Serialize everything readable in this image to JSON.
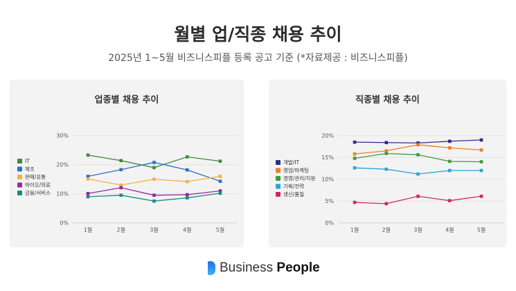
{
  "header": {
    "title": "월별 업/직종 채용 추이",
    "subtitle": "2025년 1~5월 비즈니스피플 등록 공고 기준 (*자료제공 : 비즈니스피플)"
  },
  "footer": {
    "brand_light": "Business",
    "brand_bold": "People"
  },
  "chart_data": [
    {
      "type": "line",
      "title": "업종별 채용 추이",
      "categories": [
        "1월",
        "2월",
        "3월",
        "4월",
        "5월"
      ],
      "ylim": [
        0,
        30
      ],
      "yticks": [
        0,
        10,
        20,
        30
      ],
      "ytick_labels": [
        "0%",
        "10%",
        "20%",
        "30%"
      ],
      "grid": true,
      "legend": "left",
      "series": [
        {
          "name": "IT",
          "color": "#3d8b3d",
          "values": [
            23.3,
            21.4,
            19.0,
            22.7,
            21.2
          ]
        },
        {
          "name": "제조",
          "color": "#2f6fc4",
          "values": [
            16.0,
            18.3,
            20.8,
            18.2,
            14.3
          ]
        },
        {
          "name": "판매/유통",
          "color": "#f2b340",
          "values": [
            15.1,
            13.0,
            15.0,
            14.2,
            16.0
          ]
        },
        {
          "name": "바이오/의료",
          "color": "#8e2aa0",
          "values": [
            10.1,
            12.1,
            9.5,
            9.7,
            11.0
          ]
        },
        {
          "name": "금융/서비스",
          "color": "#1a8a7a",
          "values": [
            9.0,
            9.5,
            7.5,
            8.6,
            10.2
          ]
        }
      ]
    },
    {
      "type": "line",
      "title": "직종별 채용 추이",
      "categories": [
        "1월",
        "2월",
        "3월",
        "4월",
        "5월"
      ],
      "ylim": [
        0,
        20
      ],
      "yticks": [
        0,
        5,
        10,
        15,
        20
      ],
      "ytick_labels": [
        "0%",
        "5%",
        "10%",
        "15%",
        "20%"
      ],
      "grid": true,
      "legend": "left",
      "series": [
        {
          "name": "개발/IT",
          "color": "#2a2f8a",
          "values": [
            18.5,
            18.4,
            18.3,
            18.7,
            19.0
          ]
        },
        {
          "name": "영업/마케팅",
          "color": "#e8802a",
          "values": [
            15.8,
            16.5,
            17.9,
            17.2,
            16.7
          ]
        },
        {
          "name": "경영/관리/지원",
          "color": "#3f9a3f",
          "values": [
            14.8,
            15.9,
            15.6,
            14.1,
            14.0
          ]
        },
        {
          "name": "기획/전략",
          "color": "#2aa3dc",
          "values": [
            12.6,
            12.3,
            11.2,
            12.0,
            12.0
          ]
        },
        {
          "name": "생산/품질",
          "color": "#cc2a5e",
          "values": [
            4.7,
            4.4,
            6.1,
            5.1,
            6.1
          ]
        }
      ]
    }
  ]
}
